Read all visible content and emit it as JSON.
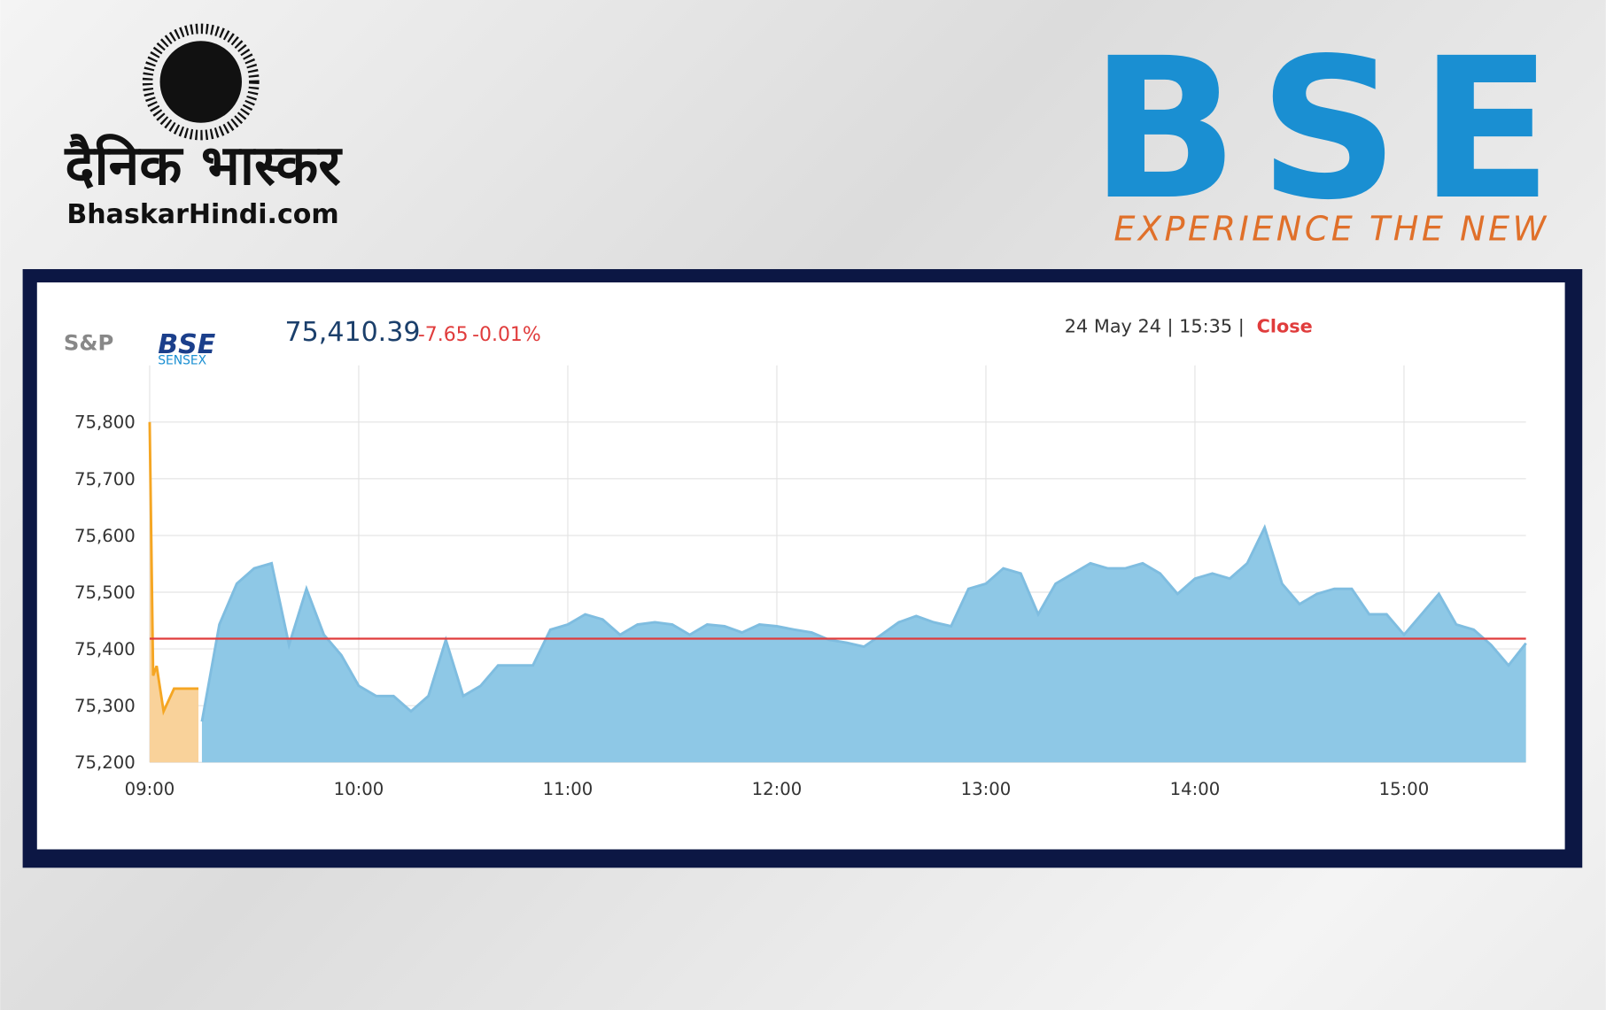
{
  "branding": {
    "newspaper": "दैनिक भास्कर",
    "website": "BhaskarHindi.com",
    "exchange_logo": "BSE",
    "exchange_tagline": "EXPERIENCE THE NEW"
  },
  "quote": {
    "provider": "S&P",
    "index_brand": "BSE",
    "index_name": "SENSEX",
    "price": "75,410.39",
    "change": "-7.65",
    "change_percent": "-0.01%",
    "timestamp": "24 May 24 | 15:35 |",
    "status": "Close"
  },
  "chart_data": {
    "type": "area",
    "x": [
      "09:00",
      "09:01",
      "09:02",
      "09:04",
      "09:07",
      "09:14",
      "09:15",
      "09:20",
      "09:25",
      "09:30",
      "09:35",
      "09:40",
      "09:45",
      "09:50",
      "09:55",
      "10:00",
      "10:05",
      "10:10",
      "10:15",
      "10:20",
      "10:25",
      "10:30",
      "10:35",
      "10:40",
      "10:45",
      "10:50",
      "10:55",
      "11:00",
      "11:05",
      "11:10",
      "11:15",
      "11:20",
      "11:25",
      "11:30",
      "11:35",
      "11:40",
      "11:45",
      "11:50",
      "11:55",
      "12:00",
      "12:05",
      "12:10",
      "12:15",
      "12:20",
      "12:25",
      "12:30",
      "12:35",
      "12:40",
      "12:45",
      "12:50",
      "12:55",
      "13:00",
      "13:05",
      "13:10",
      "13:15",
      "13:20",
      "13:25",
      "13:30",
      "13:35",
      "13:40",
      "13:45",
      "13:50",
      "13:55",
      "14:00",
      "14:05",
      "14:10",
      "14:15",
      "14:20",
      "14:25",
      "14:30",
      "14:35",
      "14:40",
      "14:45",
      "14:50",
      "14:55",
      "15:00",
      "15:05",
      "15:10",
      "15:15",
      "15:20",
      "15:25",
      "15:30",
      "15:35"
    ],
    "series": [
      {
        "color": "#f5a623",
        "fill": "#f9d29a",
        "values": [
          75800,
          75353,
          75370,
          75290,
          75330,
          75330,
          null,
          null,
          null,
          null,
          null,
          null,
          null,
          null,
          null,
          null,
          null,
          null,
          null,
          null,
          null,
          null,
          null,
          null,
          null,
          null,
          null,
          null,
          null,
          null,
          null,
          null,
          null,
          null,
          null,
          null,
          null,
          null,
          null,
          null,
          null,
          null,
          null,
          null,
          null,
          null,
          null,
          null,
          null,
          null,
          null,
          null,
          null,
          null,
          null,
          null,
          null,
          null,
          null,
          null,
          null,
          null,
          null,
          null,
          null,
          null,
          null,
          null,
          null,
          null,
          null,
          null,
          null,
          null,
          null,
          null,
          null,
          null,
          null,
          null,
          null,
          null,
          null
        ]
      },
      {
        "color": "#7fbde0",
        "fill": "#8ec8e6",
        "values": [
          null,
          null,
          null,
          null,
          null,
          null,
          75272,
          75443,
          75515,
          75542,
          75551,
          75407,
          75506,
          75425,
          75389,
          75335,
          75317,
          75317,
          75290,
          75317,
          75416,
          75317,
          75335,
          75371,
          75371,
          75371,
          75434,
          75443,
          75461,
          75452,
          75425,
          75443,
          75447,
          75443,
          75425,
          75443,
          75440,
          75429,
          75443,
          75440,
          75434,
          75429,
          75416,
          75411,
          75404,
          75425,
          75447,
          75458,
          75447,
          75440,
          75506,
          75515,
          75542,
          75533,
          75461,
          75515,
          75533,
          75551,
          75542,
          75542,
          75551,
          75533,
          75497,
          75524,
          75533,
          75524,
          75551,
          75614,
          75515,
          75479,
          75497,
          75506,
          75506,
          75461,
          75461,
          75425,
          75461,
          75497,
          75443,
          75434,
          75407,
          75371,
          75410
        ]
      }
    ],
    "reference_line": 75418.04,
    "reference_color": "#e03c3c",
    "xlim": [
      "09:00",
      "15:35"
    ],
    "xticks": [
      "09:00",
      "10:00",
      "11:00",
      "12:00",
      "13:00",
      "14:00",
      "15:00"
    ],
    "ylim": [
      75200,
      75900
    ],
    "yticks": [
      {
        "value": 75200,
        "label": "75,200"
      },
      {
        "value": 75300,
        "label": "75,300"
      },
      {
        "value": 75400,
        "label": "75,400"
      },
      {
        "value": 75500,
        "label": "75,500"
      },
      {
        "value": 75600,
        "label": "75,600"
      },
      {
        "value": 75700,
        "label": "75,700"
      },
      {
        "value": 75800,
        "label": "75,800"
      }
    ],
    "grid": true
  }
}
